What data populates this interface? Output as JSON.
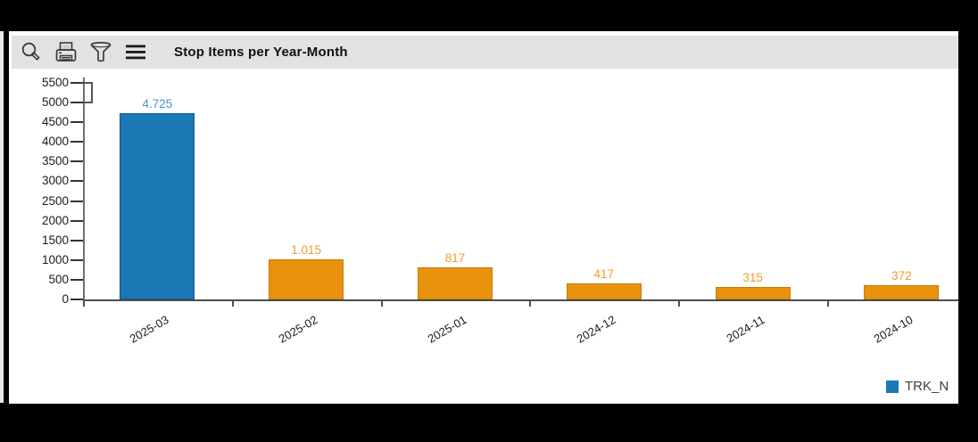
{
  "toolbar": {
    "title": "Stop Items per Year-Month",
    "icons": [
      "search-icon",
      "print-icon",
      "filter-icon",
      "menu-icon"
    ]
  },
  "legend": {
    "label": "TRK_N",
    "swatch_color": "#1c77b5"
  },
  "colors": {
    "toolbar_bg": "#e2e2e2",
    "bar_blue": "#1c77b5",
    "bar_blue_border": "#15598a",
    "bar_orange": "#e8920d",
    "bar_orange_border": "#c87c09",
    "blue_label_text": "#4a94cc",
    "orange_label_text": "#ef9d2e",
    "axis": "#4d4d4d"
  },
  "chart_data": {
    "type": "bar",
    "title": "Stop Items per Year-Month",
    "categories": [
      "2025-03",
      "2025-02",
      "2025-01",
      "2024-12",
      "2024-11",
      "2024-10"
    ],
    "series": [
      {
        "name": "TRK_N",
        "values": [
          4725,
          1015,
          817,
          417,
          315,
          372
        ]
      }
    ],
    "value_labels": [
      "4.725",
      "1.015",
      "817",
      "417",
      "315",
      "372"
    ],
    "bar_colors": [
      "#1c77b5",
      "#e8920d",
      "#e8920d",
      "#e8920d",
      "#e8920d",
      "#e8920d"
    ],
    "bar_border_colors": [
      "#15598a",
      "#c87c09",
      "#c87c09",
      "#c87c09",
      "#c87c09",
      "#c87c09"
    ],
    "value_label_colors": [
      "#4a94cc",
      "#ef9d2e",
      "#ef9d2e",
      "#ef9d2e",
      "#ef9d2e",
      "#ef9d2e"
    ],
    "ylim": [
      0,
      5500
    ],
    "ytick_step": 500,
    "grid": false,
    "legend_position": "bottom-right",
    "x_label_rotation_deg": -30,
    "xlabel": "",
    "ylabel": ""
  }
}
